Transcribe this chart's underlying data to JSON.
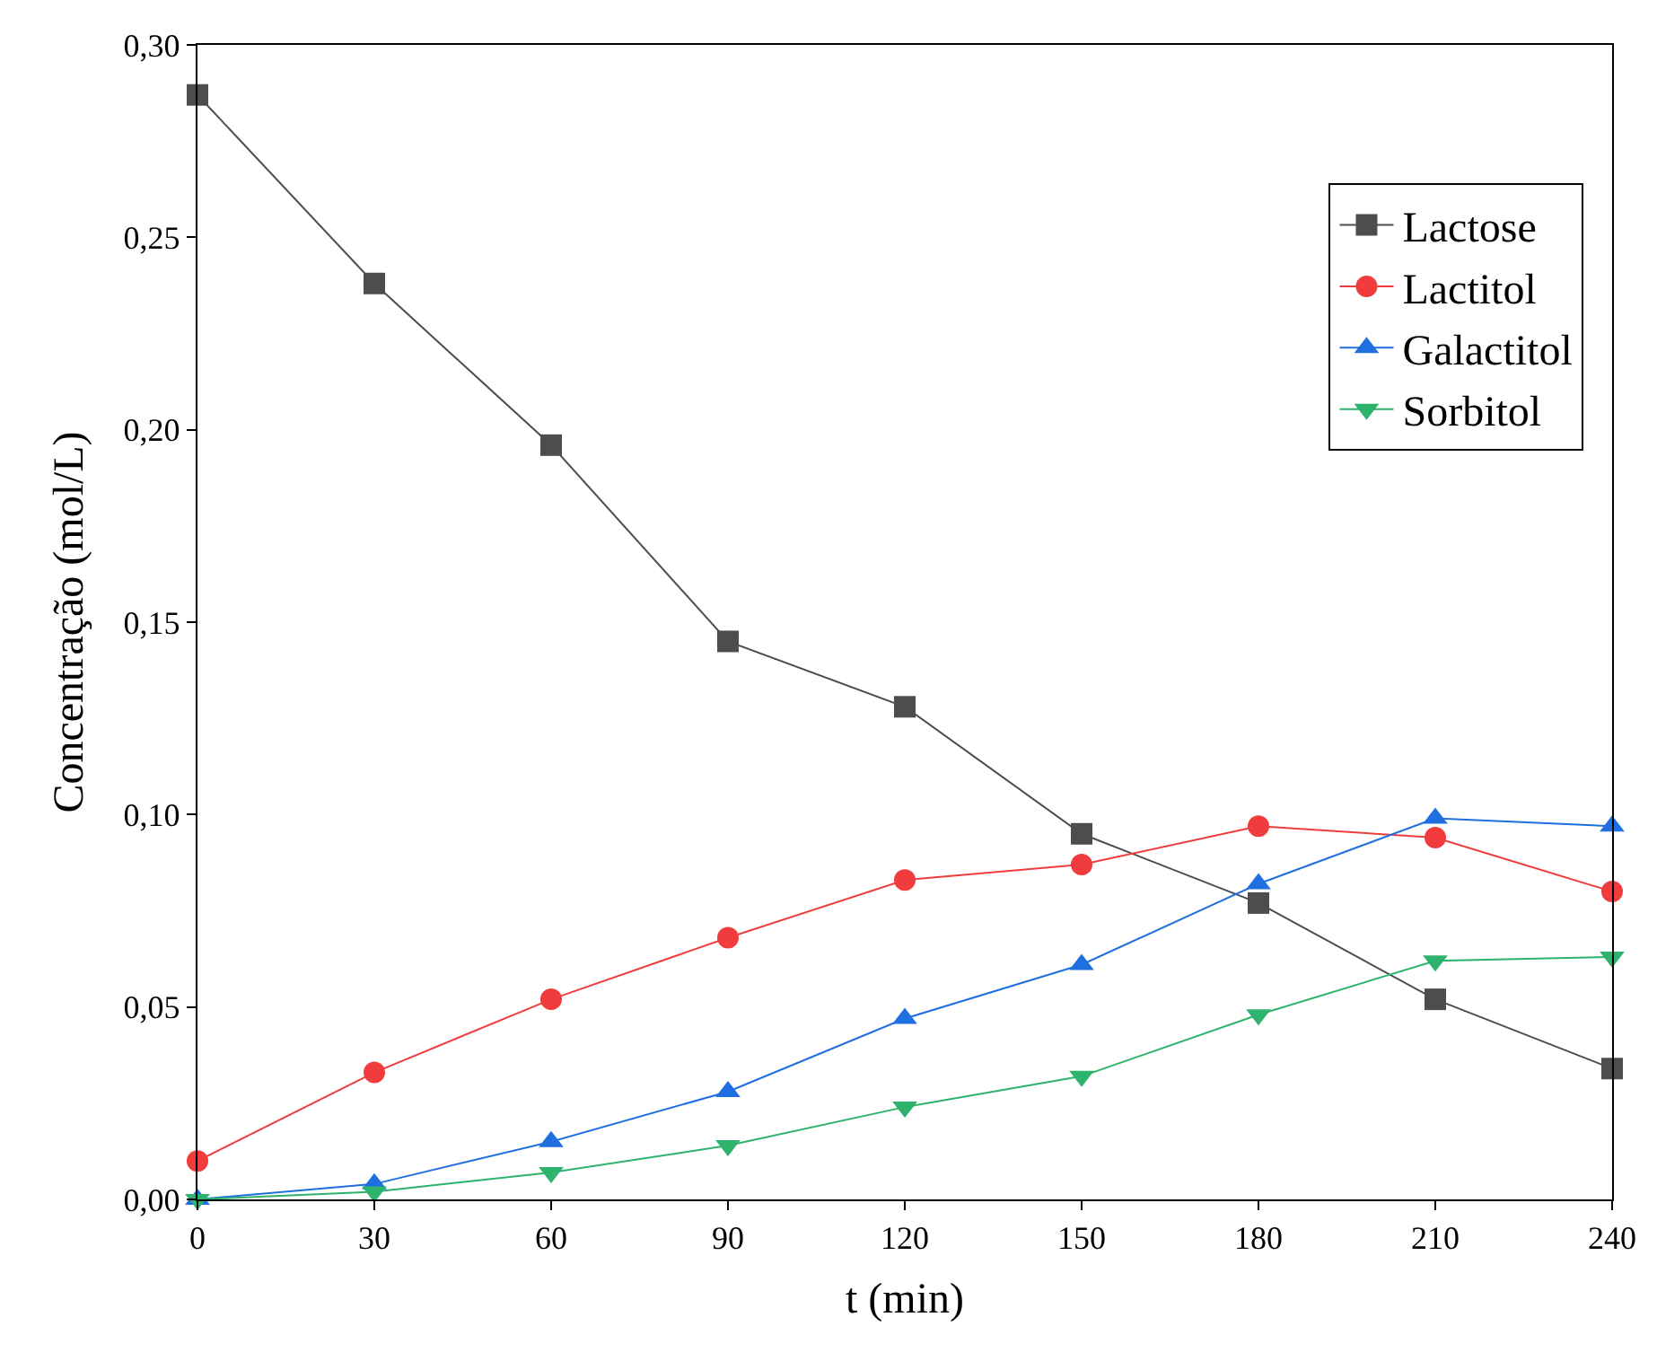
{
  "chart_data": {
    "type": "line",
    "xlabel": "t (min)",
    "ylabel": "Concentração (mol/L)",
    "x": [
      0,
      30,
      60,
      90,
      120,
      150,
      180,
      210,
      240
    ],
    "series": [
      {
        "name": "Lactose",
        "color": "#4d4d4d",
        "marker": "square",
        "values": [
          0.287,
          0.238,
          0.196,
          0.145,
          0.128,
          0.095,
          0.077,
          0.052,
          0.034
        ]
      },
      {
        "name": "Lactitol",
        "color": "#f03c3c",
        "marker": "circle",
        "values": [
          0.01,
          0.033,
          0.052,
          0.068,
          0.083,
          0.087,
          0.097,
          0.094,
          0.08
        ]
      },
      {
        "name": "Galactitol",
        "color": "#1f6fe0",
        "marker": "triangle",
        "values": [
          0,
          0.004,
          0.015,
          0.028,
          0.047,
          0.061,
          0.082,
          0.099,
          0.097
        ]
      },
      {
        "name": "Sorbitol",
        "color": "#2db36b",
        "marker": "triangle-down",
        "values": [
          0,
          0.002,
          0.007,
          0.014,
          0.024,
          0.032,
          0.048,
          0.062,
          0.063
        ]
      }
    ],
    "xlim": [
      0,
      240
    ],
    "xticks": [
      0,
      30,
      60,
      90,
      120,
      150,
      180,
      210,
      240
    ],
    "ylim": [
      0,
      0.3
    ],
    "yticks": [
      {
        "value": 0,
        "label": "0,00"
      },
      {
        "value": 0.05,
        "label": "0,05"
      },
      {
        "value": 0.1,
        "label": "0,10"
      },
      {
        "value": 0.15,
        "label": "0,15"
      },
      {
        "value": 0.2,
        "label": "0,20"
      },
      {
        "value": 0.25,
        "label": "0,25"
      },
      {
        "value": 0.3,
        "label": "0,30"
      }
    ],
    "legend": "top right",
    "line_style": "solid"
  }
}
